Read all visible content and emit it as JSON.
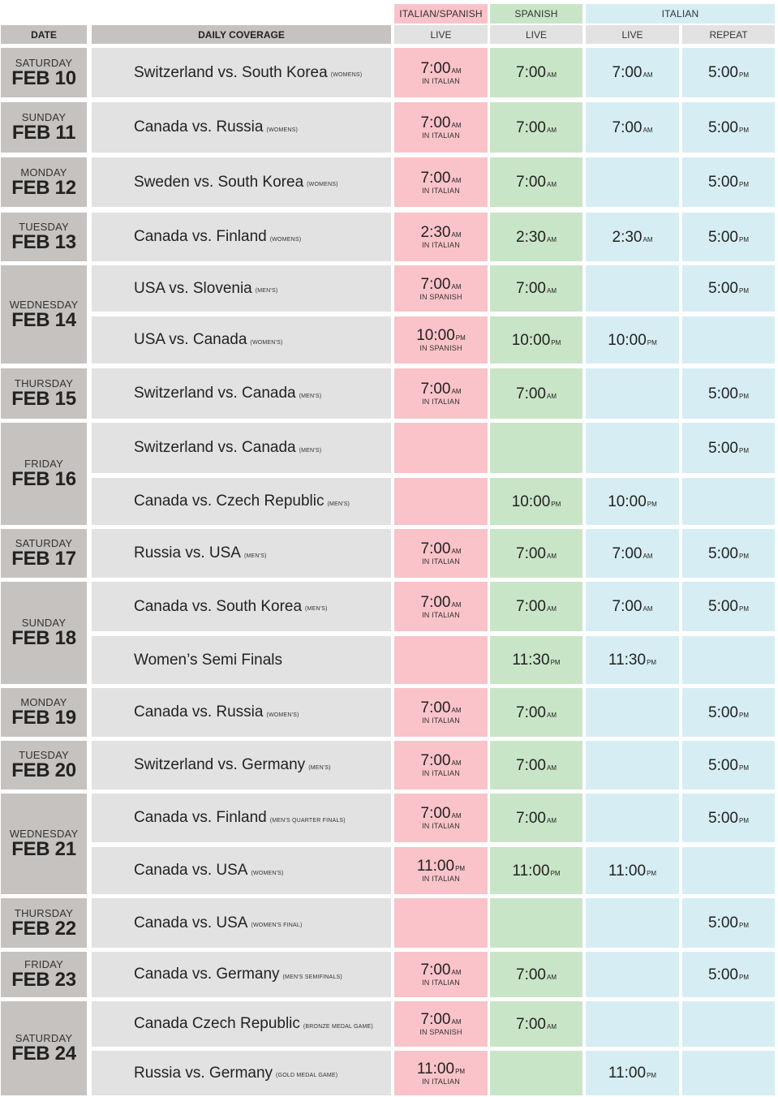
{
  "header": {
    "groups": [
      "ITALIAN/SPANISH",
      "SPANISH",
      "ITALIAN"
    ],
    "columns": [
      "DATE",
      "DAILY COVERAGE",
      "LIVE",
      "LIVE",
      "LIVE",
      "REPEAT"
    ]
  },
  "colors": {
    "date_bg": "#c6c2bf",
    "coverage_bg": "#e3e2e2",
    "italian_spanish": "#f9c3c9",
    "spanish": "#c9e5c7",
    "italian": "#d6eef3"
  },
  "days": [
    {
      "dow": "SATURDAY",
      "date": "FEB 10",
      "games": [
        {
          "name": "Switzerland vs. South Korea",
          "note": "(WOMENS)",
          "is": {
            "time": "7:00",
            "ap": "AM",
            "lang": "IN ITALIAN"
          },
          "sp": {
            "time": "7:00",
            "ap": "AM"
          },
          "it": {
            "time": "7:00",
            "ap": "AM"
          },
          "rp": {
            "time": "5:00",
            "ap": "PM"
          }
        }
      ]
    },
    {
      "dow": "SUNDAY",
      "date": "FEB 11",
      "games": [
        {
          "name": "Canada vs. Russia",
          "note": "(WOMENS)",
          "is": {
            "time": "7:00",
            "ap": "AM",
            "lang": "IN ITALIAN"
          },
          "sp": {
            "time": "7:00",
            "ap": "AM"
          },
          "it": {
            "time": "7:00",
            "ap": "AM"
          },
          "rp": {
            "time": "5:00",
            "ap": "PM"
          }
        }
      ]
    },
    {
      "dow": "MONDAY",
      "date": "FEB 12",
      "games": [
        {
          "name": "Sweden vs. South Korea",
          "note": "(WOMENS)",
          "is": {
            "time": "7:00",
            "ap": "AM",
            "lang": "IN ITALIAN"
          },
          "sp": {
            "time": "7:00",
            "ap": "AM"
          },
          "it": null,
          "rp": {
            "time": "5:00",
            "ap": "PM"
          }
        }
      ]
    },
    {
      "dow": "TUESDAY",
      "date": "FEB 13",
      "games": [
        {
          "name": "Canada vs. Finland",
          "note": "(WOMENS)",
          "is": {
            "time": "2:30",
            "ap": "AM",
            "lang": "IN ITALIAN"
          },
          "sp": {
            "time": "2:30",
            "ap": "AM"
          },
          "it": {
            "time": "2:30",
            "ap": "AM"
          },
          "rp": {
            "time": "5:00",
            "ap": "PM"
          }
        }
      ]
    },
    {
      "dow": "WEDNESDAY",
      "date": "FEB 14",
      "games": [
        {
          "name": "USA vs. Slovenia",
          "note": "(MEN'S)",
          "is": {
            "time": "7:00",
            "ap": "AM",
            "lang": "IN SPANISH"
          },
          "sp": {
            "time": "7:00",
            "ap": "AM"
          },
          "it": null,
          "rp": {
            "time": "5:00",
            "ap": "PM"
          }
        },
        {
          "name": "USA vs. Canada",
          "note": "(WOMEN'S)",
          "is": {
            "time": "10:00",
            "ap": "PM",
            "lang": "IN SPANISH"
          },
          "sp": {
            "time": "10:00",
            "ap": "PM"
          },
          "it": {
            "time": "10:00",
            "ap": "PM"
          },
          "rp": null
        }
      ]
    },
    {
      "dow": "THURSDAY",
      "date": "FEB 15",
      "games": [
        {
          "name": "Switzerland vs. Canada",
          "note": "(MEN'S)",
          "is": {
            "time": "7:00",
            "ap": "AM",
            "lang": "IN ITALIAN"
          },
          "sp": {
            "time": "7:00",
            "ap": "AM"
          },
          "it": null,
          "rp": {
            "time": "5:00",
            "ap": "PM"
          }
        }
      ]
    },
    {
      "dow": "FRIDAY",
      "date": "FEB 16",
      "games": [
        {
          "name": "Switzerland vs. Canada",
          "note": "(MEN'S)",
          "is": null,
          "sp": null,
          "it": null,
          "rp": {
            "time": "5:00",
            "ap": "PM"
          }
        },
        {
          "name": "Canada vs. Czech Republic",
          "note": "(MEN'S)",
          "is": null,
          "sp": {
            "time": "10:00",
            "ap": "PM"
          },
          "it": {
            "time": "10:00",
            "ap": "PM"
          },
          "rp": null
        }
      ]
    },
    {
      "dow": "SATURDAY",
      "date": "FEB 17",
      "games": [
        {
          "name": "Russia vs. USA",
          "note": "(MEN'S)",
          "is": {
            "time": "7:00",
            "ap": "AM",
            "lang": "IN ITALIAN"
          },
          "sp": {
            "time": "7:00",
            "ap": "AM"
          },
          "it": {
            "time": "7:00",
            "ap": "AM"
          },
          "rp": {
            "time": "5:00",
            "ap": "PM"
          }
        }
      ]
    },
    {
      "dow": "SUNDAY",
      "date": "FEB 18",
      "games": [
        {
          "name": "Canada vs. South Korea",
          "note": "(MEN'S)",
          "is": {
            "time": "7:00",
            "ap": "AM",
            "lang": "IN ITALIAN"
          },
          "sp": {
            "time": "7:00",
            "ap": "AM"
          },
          "it": {
            "time": "7:00",
            "ap": "AM"
          },
          "rp": {
            "time": "5:00",
            "ap": "PM"
          }
        },
        {
          "name": "Women’s Semi Finals",
          "note": "",
          "is": null,
          "sp": {
            "time": "11:30",
            "ap": "PM"
          },
          "it": {
            "time": "11:30",
            "ap": "PM"
          },
          "rp": null
        }
      ]
    },
    {
      "dow": "MONDAY",
      "date": "FEB 19",
      "games": [
        {
          "name": "Canada vs. Russia",
          "note": "(WOMEN'S)",
          "is": {
            "time": "7:00",
            "ap": "AM",
            "lang": "IN ITALIAN"
          },
          "sp": {
            "time": "7:00",
            "ap": "AM"
          },
          "it": null,
          "rp": {
            "time": "5:00",
            "ap": "PM"
          }
        }
      ]
    },
    {
      "dow": "TUESDAY",
      "date": "FEB 20",
      "games": [
        {
          "name": "Switzerland vs. Germany",
          "note": "(MEN'S)",
          "is": {
            "time": "7:00",
            "ap": "AM",
            "lang": "IN ITALIAN"
          },
          "sp": {
            "time": "7:00",
            "ap": "AM"
          },
          "it": null,
          "rp": {
            "time": "5:00",
            "ap": "PM"
          }
        }
      ]
    },
    {
      "dow": "WEDNESDAY",
      "date": "FEB 21",
      "games": [
        {
          "name": "Canada vs. Finland",
          "note": "(MEN'S QUARTER FINALS)",
          "is": {
            "time": "7:00",
            "ap": "AM",
            "lang": "IN ITALIAN"
          },
          "sp": {
            "time": "7:00",
            "ap": "AM"
          },
          "it": null,
          "rp": {
            "time": "5:00",
            "ap": "PM"
          }
        },
        {
          "name": "Canada vs. USA",
          "note": "(WOMEN'S)",
          "is": {
            "time": "11:00",
            "ap": "PM",
            "lang": "IN ITALIAN"
          },
          "sp": {
            "time": "11:00",
            "ap": "PM"
          },
          "it": {
            "time": "11:00",
            "ap": "PM"
          },
          "rp": null
        }
      ]
    },
    {
      "dow": "THURSDAY",
      "date": "FEB 22",
      "games": [
        {
          "name": "Canada vs. USA",
          "note": "(WOMEN'S FINAL)",
          "is": null,
          "sp": null,
          "it": null,
          "rp": {
            "time": "5:00",
            "ap": "PM"
          }
        }
      ]
    },
    {
      "dow": "FRIDAY",
      "date": "FEB 23",
      "games": [
        {
          "name": "Canada vs. Germany",
          "note": "(MEN'S SEMIFINALS)",
          "is": {
            "time": "7:00",
            "ap": "AM",
            "lang": "IN ITALIAN"
          },
          "sp": {
            "time": "7:00",
            "ap": "AM"
          },
          "it": null,
          "rp": {
            "time": "5:00",
            "ap": "PM"
          }
        }
      ]
    },
    {
      "dow": "SATURDAY",
      "date": "FEB 24",
      "games": [
        {
          "name": "Canada Czech Republic",
          "note": "(BRONZE MEDAL GAME)",
          "is": {
            "time": "7:00",
            "ap": "AM",
            "lang": "IN SPANISH"
          },
          "sp": {
            "time": "7:00",
            "ap": "AM"
          },
          "it": null,
          "rp": null
        },
        {
          "name": "Russia vs. Germany",
          "note": "(GOLD MEDAL GAME)",
          "is": {
            "time": "11:00",
            "ap": "PM",
            "lang": "IN ITALIAN"
          },
          "sp": null,
          "it": {
            "time": "11:00",
            "ap": "PM"
          },
          "rp": null
        }
      ]
    }
  ]
}
